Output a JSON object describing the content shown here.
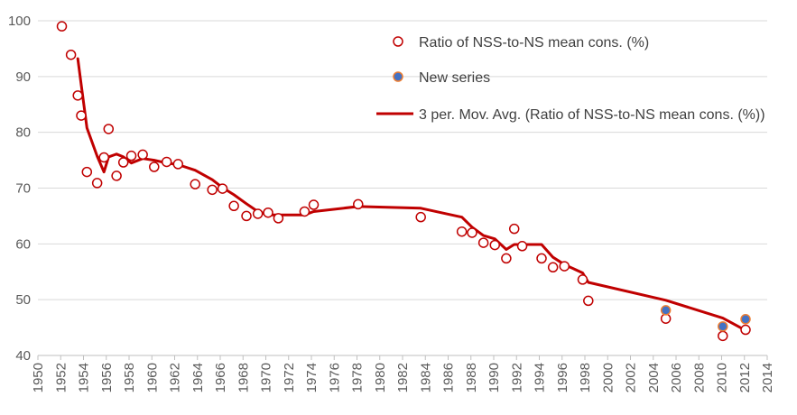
{
  "chart_data": {
    "type": "scatter+line",
    "title": "",
    "xlabel": "",
    "ylabel": "",
    "xlim": [
      1950,
      2014
    ],
    "ylim": [
      40,
      100
    ],
    "x_ticks": [
      "1950",
      "1952",
      "1954",
      "1956",
      "1958",
      "1960",
      "1962",
      "1964",
      "1966",
      "1968",
      "1970",
      "1972",
      "1974",
      "1976",
      "1978",
      "1980",
      "1982",
      "1984",
      "1986",
      "1988",
      "1990",
      "1992",
      "1994",
      "1996",
      "1998",
      "2000",
      "2002",
      "2004",
      "2006",
      "2008",
      "2010",
      "2012",
      "2014"
    ],
    "y_ticks": [
      "40",
      "50",
      "60",
      "70",
      "80",
      "90",
      "100"
    ],
    "grid": true,
    "legend": [
      "Ratio of NSS-to-NS mean cons. (%)",
      "New series",
      "3 per. Mov. Avg. (Ratio of NSS-to-NS mean cons. (%))"
    ],
    "series": [
      {
        "name": "Ratio of NSS-to-NS mean cons. (%)",
        "kind": "scatter",
        "color": "#c00000",
        "x": [
          1952.1,
          1952.9,
          1953.5,
          1953.8,
          1954.3,
          1955.2,
          1955.8,
          1956.2,
          1956.9,
          1957.5,
          1958.2,
          1959.2,
          1960.2,
          1961.3,
          1962.3,
          1963.8,
          1965.3,
          1966.2,
          1967.2,
          1968.3,
          1969.3,
          1970.2,
          1971.1,
          1973.4,
          1974.2,
          1978.1,
          1983.6,
          1987.2,
          1988.1,
          1989.1,
          1990.1,
          1991.1,
          1991.8,
          1992.5,
          1994.2,
          1995.2,
          1996.2,
          1997.8,
          1998.3,
          2005.1,
          2010.1,
          2012.1
        ],
        "y": [
          99.0,
          93.9,
          86.6,
          83.0,
          72.9,
          70.9,
          75.5,
          80.6,
          72.2,
          74.6,
          75.8,
          76.0,
          73.8,
          74.7,
          74.3,
          70.7,
          69.7,
          69.9,
          66.8,
          65.0,
          65.4,
          65.6,
          64.6,
          65.8,
          67.0,
          67.1,
          64.8,
          62.2,
          62.0,
          60.2,
          59.8,
          57.4,
          62.7,
          59.6,
          57.4,
          55.8,
          56.0,
          53.6,
          49.8,
          46.6,
          43.5,
          44.6
        ]
      },
      {
        "name": "New series",
        "kind": "scatter",
        "color": "#4472c4",
        "edge": "#ed7d31",
        "x": [
          2005.1,
          2010.1,
          2012.1
        ],
        "y": [
          48.1,
          45.2,
          46.5
        ]
      },
      {
        "name": "3 per. Mov. Avg. (Ratio of NSS-to-NS mean cons. (%))",
        "kind": "line",
        "color": "#c00000",
        "x": [
          1953.5,
          1953.8,
          1954.3,
          1955.2,
          1955.8,
          1956.2,
          1956.9,
          1957.5,
          1958.2,
          1959.2,
          1960.2,
          1961.3,
          1962.3,
          1963.8,
          1965.3,
          1966.2,
          1967.2,
          1968.3,
          1969.3,
          1970.2,
          1971.1,
          1973.4,
          1974.2,
          1978.1,
          1983.6,
          1987.2,
          1988.1,
          1989.1,
          1990.1,
          1991.1,
          1991.8,
          1992.5,
          1994.2,
          1995.2,
          1996.2,
          1997.8,
          1998.3,
          2005.1,
          2010.1,
          2012.1
        ],
        "y": [
          93.2,
          88.5,
          80.8,
          75.7,
          72.9,
          75.6,
          76.1,
          75.6,
          74.5,
          75.3,
          75.0,
          74.5,
          74.2,
          73.2,
          71.5,
          70.1,
          68.8,
          67.2,
          65.8,
          65.2,
          65.2,
          65.2,
          65.8,
          66.7,
          66.4,
          64.8,
          63.0,
          61.5,
          60.9,
          59.0,
          59.9,
          59.9,
          59.9,
          57.6,
          56.3,
          54.8,
          53.1,
          49.9,
          46.7,
          44.5
        ]
      }
    ]
  }
}
